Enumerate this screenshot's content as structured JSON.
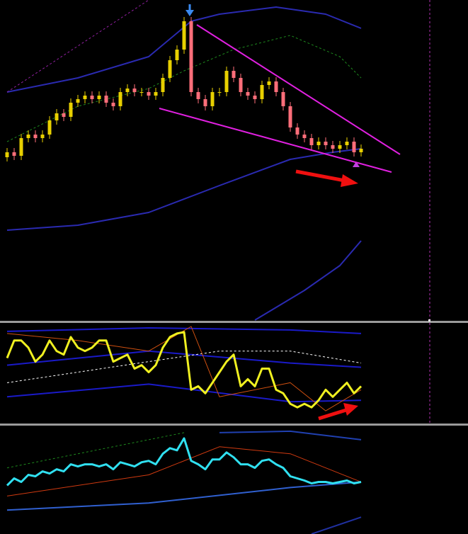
{
  "chart_data": [
    {
      "type": "candlestick",
      "up_color": "#e8d000",
      "down_color": "#ff6e7a",
      "xlim": [
        -1,
        65
      ],
      "ylim": [
        0,
        452
      ],
      "open": [
        230,
        237,
        232,
        257,
        262,
        257,
        262,
        282,
        292,
        287,
        307,
        312,
        317,
        312,
        317,
        307,
        302,
        322,
        327,
        322,
        322,
        317,
        322,
        342,
        367,
        382,
        422,
        322,
        312,
        302,
        322,
        322,
        352,
        342,
        322,
        317,
        312,
        332,
        337,
        322,
        302,
        272,
        262,
        257,
        247,
        252,
        247,
        242,
        247,
        252,
        237
      ],
      "high": [
        243,
        243,
        263,
        268,
        268,
        268,
        288,
        298,
        298,
        313,
        318,
        323,
        323,
        323,
        323,
        313,
        328,
        333,
        333,
        328,
        328,
        328,
        348,
        373,
        388,
        428,
        428,
        328,
        318,
        328,
        328,
        358,
        358,
        348,
        328,
        323,
        338,
        343,
        343,
        328,
        308,
        278,
        268,
        263,
        258,
        258,
        253,
        253,
        258,
        258,
        248
      ],
      "low": [
        224,
        226,
        226,
        251,
        251,
        251,
        256,
        276,
        281,
        281,
        301,
        306,
        306,
        306,
        301,
        296,
        296,
        316,
        316,
        316,
        311,
        311,
        316,
        336,
        361,
        376,
        316,
        306,
        296,
        296,
        316,
        316,
        336,
        316,
        311,
        306,
        306,
        326,
        316,
        296,
        266,
        256,
        251,
        241,
        241,
        241,
        236,
        236,
        241,
        231,
        231
      ],
      "close": [
        237,
        232,
        257,
        262,
        257,
        262,
        282,
        292,
        287,
        307,
        312,
        317,
        312,
        317,
        307,
        302,
        322,
        327,
        322,
        322,
        317,
        322,
        342,
        367,
        382,
        422,
        322,
        312,
        302,
        322,
        322,
        352,
        342,
        322,
        317,
        312,
        332,
        337,
        322,
        302,
        272,
        262,
        257,
        247,
        252,
        247,
        242,
        247,
        252,
        237,
        242
      ],
      "series": [
        {
          "color": "#2a2ab0",
          "line_width": 2,
          "x": [
            0,
            10,
            20,
            26,
            30,
            38,
            45,
            50
          ],
          "values": [
            322,
            342,
            372,
            422,
            432,
            442,
            432,
            412
          ]
        },
        {
          "color": "#2a2ab0",
          "line_width": 2,
          "x": [
            0,
            10,
            20,
            30,
            40,
            46,
            50
          ],
          "values": [
            127,
            134,
            152,
            190,
            227,
            237,
            242
          ]
        },
        {
          "color": "#2a2ab0",
          "line_width": 2,
          "x": [
            35,
            42,
            47,
            50
          ],
          "values": [
            0,
            42,
            77,
            112
          ]
        },
        {
          "color": "#1e8a1e",
          "line_width": 1,
          "dash": true,
          "x": [
            0,
            10,
            20,
            25,
            32,
            40,
            47,
            50
          ],
          "values": [
            252,
            302,
            327,
            352,
            382,
            402,
            372,
            342
          ]
        },
        {
          "color": "#9020a0",
          "line_width": 1,
          "dash": true,
          "x": [
            0,
            20
          ],
          "values": [
            322,
            452
          ]
        },
        {
          "color": "#e020e0",
          "line_width": 2,
          "x": [
            26.8,
            55.5
          ],
          "values": [
            417,
            234
          ]
        },
        {
          "color": "#e020e0",
          "line_width": 2,
          "x": [
            21.5,
            54.3
          ],
          "values": [
            299,
            209
          ]
        }
      ]
    },
    {
      "type": "line",
      "xlim": [
        -1,
        65
      ],
      "ylim": [
        0,
        142
      ],
      "series": [
        {
          "color": "#1a1ac8",
          "line_width": 2,
          "x": [
            0,
            20,
            40,
            50
          ],
          "values": [
            130,
            135,
            132,
            127
          ]
        },
        {
          "color": "#1a1ac8",
          "line_width": 2,
          "x": [
            0,
            20,
            40,
            50
          ],
          "values": [
            82,
            102,
            85,
            79
          ]
        },
        {
          "color": "#1a1ac8",
          "line_width": 2,
          "x": [
            0,
            20,
            40,
            50
          ],
          "values": [
            37,
            55,
            30,
            32
          ]
        },
        {
          "color": "#ffffff",
          "line_width": 1,
          "dash": true,
          "x": [
            0,
            20,
            30,
            40,
            50
          ],
          "values": [
            57,
            87,
            102,
            102,
            85
          ]
        },
        {
          "color": "#d05010",
          "line_width": 1,
          "x": [
            0,
            10,
            20,
            26,
            30,
            40,
            45,
            50
          ],
          "values": [
            127,
            117,
            102,
            137,
            37,
            57,
            17,
            47
          ]
        },
        {
          "color": "#f0f020",
          "line_width": 3,
          "values": [
            92,
            117,
            117,
            107,
            87,
            97,
            117,
            102,
            97,
            122,
            107,
            102,
            107,
            117,
            117,
            87,
            92,
            97,
            77,
            82,
            72,
            82,
            107,
            122,
            127,
            129,
            47,
            52,
            42,
            57,
            72,
            87,
            97,
            52,
            62,
            52,
            77,
            77,
            47,
            42,
            27,
            22,
            27,
            22,
            32,
            47,
            37,
            47,
            57,
            42,
            52
          ]
        }
      ]
    },
    {
      "type": "line",
      "xlim": [
        -1,
        65
      ],
      "ylim": [
        0,
        154
      ],
      "series": [
        {
          "color": "#3060d0",
          "line_width": 2,
          "x": [
            0,
            20,
            40,
            50
          ],
          "values": [
            34,
            44,
            66,
            74
          ]
        },
        {
          "color": "#2040b0",
          "line_width": 2,
          "x": [
            30,
            40,
            50
          ],
          "values": [
            144,
            146,
            134
          ]
        },
        {
          "color": "#d03a10",
          "line_width": 1,
          "x": [
            0,
            20,
            30,
            40,
            50
          ],
          "values": [
            54,
            84,
            124,
            114,
            74
          ]
        },
        {
          "color": "#1e8a1e",
          "line_width": 1,
          "dash": true,
          "x": [
            0,
            25
          ],
          "values": [
            94,
            144
          ]
        },
        {
          "color": "#2030a0",
          "line_width": 2,
          "x": [
            43,
            50
          ],
          "values": [
            0,
            24
          ]
        },
        {
          "color": "#30e0f0",
          "line_width": 3,
          "values": [
            69,
            79,
            74,
            84,
            82,
            89,
            86,
            92,
            89,
            99,
            96,
            99,
            99,
            96,
            99,
            92,
            102,
            99,
            96,
            102,
            104,
            99,
            114,
            122,
            119,
            136,
            104,
            99,
            92,
            106,
            106,
            116,
            109,
            99,
            99,
            94,
            104,
            106,
            99,
            94,
            82,
            79,
            76,
            72,
            74,
            74,
            72,
            74,
            76,
            72,
            74
          ]
        }
      ]
    }
  ]
}
